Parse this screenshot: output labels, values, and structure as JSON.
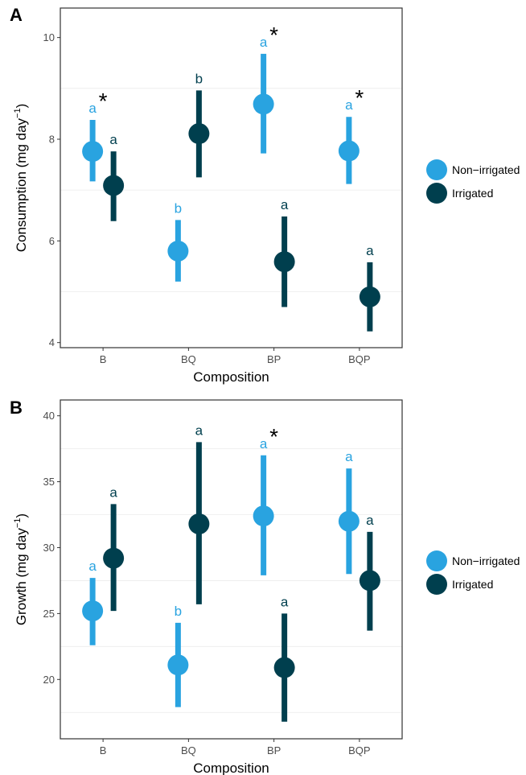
{
  "colors": {
    "non_irrigated": "#29a3e0",
    "irrigated": "#003f4e",
    "grid": "#ebebeb",
    "frame": "#333333"
  },
  "chart_data": [
    {
      "type": "scatter",
      "panel_label": "A",
      "categories": [
        "B",
        "BQ",
        "BP",
        "BQP"
      ],
      "xlabel": "Composition",
      "ylabel": "Consumption (mg day",
      "ylabel_sup": "−1",
      "ylabel_tail": ")",
      "ylim": [
        3.9,
        10.58
      ],
      "yticks": [
        4,
        6,
        8,
        10
      ],
      "legend": "right",
      "series": [
        {
          "name": "Non−irrigated",
          "values": [
            7.76,
            5.8,
            8.69,
            7.77
          ],
          "lower": [
            7.17,
            5.2,
            7.72,
            7.12
          ],
          "upper": [
            8.38,
            6.41,
            9.68,
            8.44
          ],
          "letters": [
            "a",
            "b",
            "a",
            "a"
          ]
        },
        {
          "name": "Irrigated",
          "values": [
            7.09,
            8.11,
            5.59,
            4.9
          ],
          "lower": [
            6.39,
            7.25,
            4.7,
            4.22
          ],
          "upper": [
            7.76,
            8.96,
            6.48,
            5.58
          ],
          "letters": [
            "a",
            "b",
            "a",
            "a"
          ]
        }
      ],
      "stars": [
        "*",
        "",
        "*",
        "*"
      ]
    },
    {
      "type": "scatter",
      "panel_label": "B",
      "categories": [
        "B",
        "BQ",
        "BP",
        "BQP"
      ],
      "xlabel": "Composition",
      "ylabel": "Growth (mg day",
      "ylabel_sup": "−1",
      "ylabel_tail": ")",
      "ylim": [
        15.5,
        41.2
      ],
      "yticks": [
        20,
        25,
        30,
        35,
        40
      ],
      "legend": "right",
      "series": [
        {
          "name": "Non−irrigated",
          "values": [
            25.2,
            21.1,
            32.4,
            32.0
          ],
          "lower": [
            22.6,
            17.9,
            27.9,
            28.0
          ],
          "upper": [
            27.7,
            24.3,
            37.0,
            36.0
          ],
          "letters": [
            "a",
            "b",
            "a",
            "a"
          ]
        },
        {
          "name": "Irrigated",
          "values": [
            29.2,
            31.8,
            20.9,
            27.5
          ],
          "lower": [
            25.2,
            25.7,
            16.8,
            23.7
          ],
          "upper": [
            33.3,
            38.0,
            25.0,
            31.2
          ],
          "letters": [
            "a",
            "a",
            "a",
            "a"
          ]
        }
      ],
      "stars": [
        "",
        "",
        "*",
        ""
      ]
    }
  ]
}
